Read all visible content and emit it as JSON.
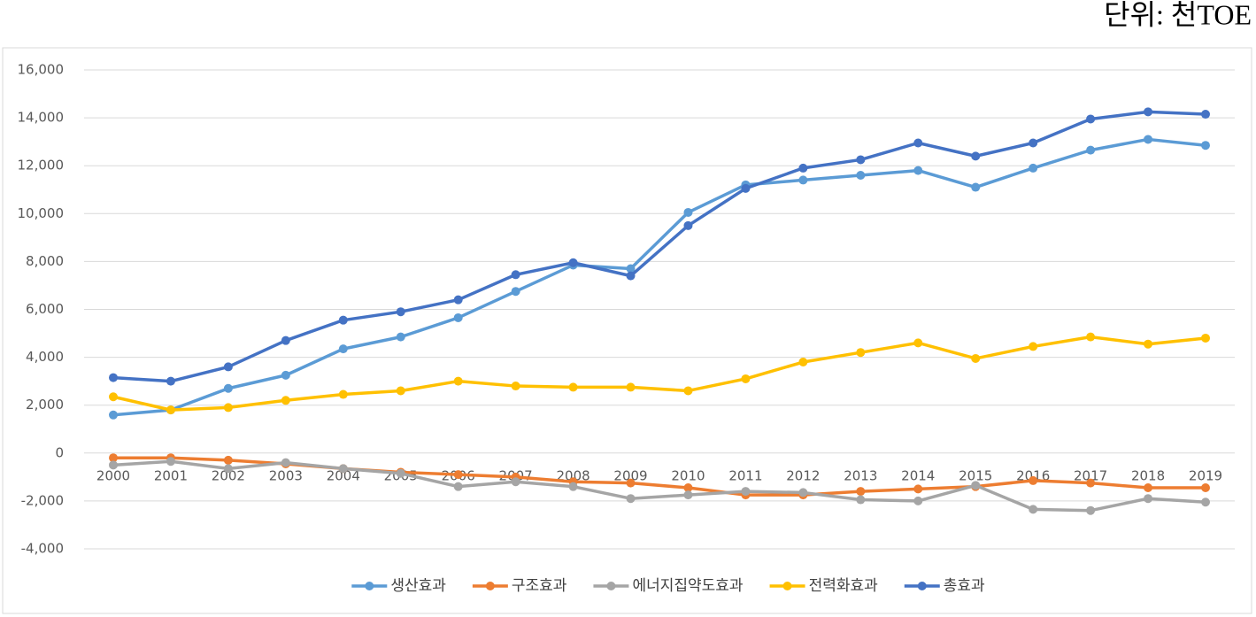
{
  "chart_data": {
    "type": "line",
    "unit": "단위: 천TOE",
    "categories": [
      "2000",
      "2001",
      "2002",
      "2003",
      "2004",
      "2005",
      "2006",
      "2007",
      "2008",
      "2009",
      "2010",
      "2011",
      "2012",
      "2013",
      "2014",
      "2015",
      "2016",
      "2017",
      "2018",
      "2019"
    ],
    "series": [
      {
        "name": "생산효과",
        "color": "#5b9bd5",
        "values": [
          1590,
          1800,
          2700,
          3250,
          4350,
          4850,
          5650,
          6750,
          7850,
          7700,
          10050,
          11200,
          11400,
          11600,
          11800,
          11100,
          11900,
          12650,
          13100,
          12850
        ]
      },
      {
        "name": "구조효과",
        "color": "#ed7d31",
        "values": [
          -200,
          -200,
          -300,
          -450,
          -650,
          -800,
          -900,
          -1000,
          -1200,
          -1250,
          -1450,
          -1750,
          -1750,
          -1600,
          -1500,
          -1400,
          -1150,
          -1250,
          -1450,
          -1450
        ]
      },
      {
        "name": "에너지집약도효과",
        "color": "#a5a5a5",
        "values": [
          -500,
          -350,
          -650,
          -400,
          -650,
          -850,
          -1400,
          -1200,
          -1400,
          -1900,
          -1750,
          -1600,
          -1650,
          -1950,
          -2000,
          -1350,
          -2350,
          -2400,
          -1900,
          -2050
        ]
      },
      {
        "name": "전력화효과",
        "color": "#ffc000",
        "values": [
          2350,
          1800,
          1900,
          2200,
          2450,
          2600,
          3000,
          2800,
          2750,
          2750,
          2600,
          3100,
          3800,
          4200,
          4600,
          3950,
          4450,
          4850,
          4550,
          4800
        ]
      },
      {
        "name": "총효과",
        "color": "#4472c4",
        "values": [
          3150,
          3000,
          3600,
          4700,
          5550,
          5900,
          6400,
          7450,
          7950,
          7400,
          9500,
          11050,
          11900,
          12250,
          12950,
          12400,
          12950,
          13950,
          14250,
          14150
        ]
      }
    ],
    "ylim": [
      -4000,
      16000
    ],
    "yticks": [
      {
        "value": -4000,
        "label": "-4,000"
      },
      {
        "value": -2000,
        "label": "-2,000"
      },
      0,
      {
        "value": 2000,
        "label": "2,000"
      },
      {
        "value": 4000,
        "label": "4,000"
      },
      {
        "value": 6000,
        "label": "6,000"
      },
      {
        "value": 8000,
        "label": "8,000"
      },
      {
        "value": 10000,
        "label": "10,000"
      },
      {
        "value": 12000,
        "label": "12,000"
      },
      {
        "value": 14000,
        "label": "14,000"
      },
      {
        "value": 16000,
        "label": "16,000"
      }
    ],
    "grid": true,
    "legend": "bottom"
  }
}
